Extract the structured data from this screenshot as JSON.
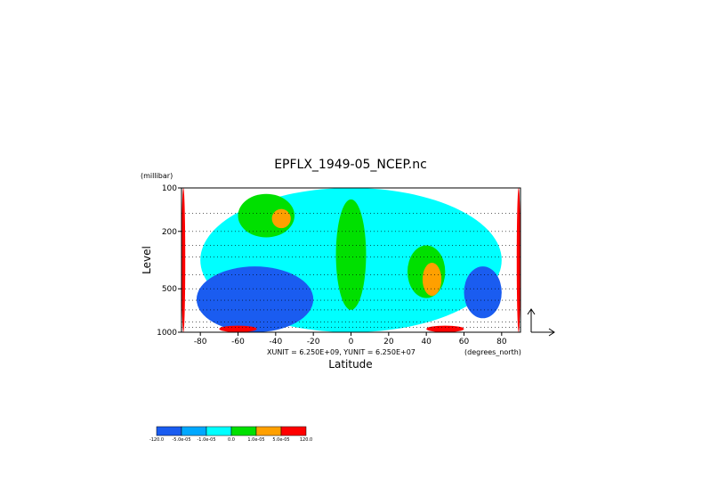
{
  "chart_data": {
    "type": "heatmap",
    "title": "EPFLX_1949-05_NCEP.nc",
    "xlabel": "Latitude",
    "ylabel": "Level",
    "y_unit": "(millibar)",
    "x_unit": "(degrees_north)",
    "vector_scale": "XUNIT = 6.250E+09, YUNIT = 6.250E+07",
    "x_ticks": [
      -80,
      -60,
      -40,
      -20,
      0,
      20,
      40,
      60,
      80
    ],
    "y_ticks": [
      100,
      200,
      500,
      1000
    ],
    "xlim": [
      -90,
      90
    ],
    "ylim": [
      1000,
      100
    ],
    "y_scale": "log",
    "grid": "dotted, pressure levels",
    "colorbar": {
      "boundaries": [
        "-120.0",
        "-5.0e-05",
        "-1.0e-05",
        "0.0",
        "1.0e-05",
        "5.0e-05",
        "120.0"
      ],
      "colors": [
        "#1a5cf0",
        "#00a8ff",
        "#00ffff",
        "#00e000",
        "#ffa000",
        "#ff0000"
      ]
    },
    "regions": [
      {
        "level": "cyan",
        "lat": [
          -80,
          80
        ],
        "p": [
          100,
          1000
        ]
      },
      {
        "level": "blue",
        "lat": [
          -82,
          -20
        ],
        "p": [
          350,
          1000
        ]
      },
      {
        "level": "blue",
        "lat": [
          60,
          80
        ],
        "p": [
          350,
          800
        ]
      },
      {
        "level": "green",
        "lat": [
          -60,
          -30
        ],
        "p": [
          110,
          220
        ]
      },
      {
        "level": "orange",
        "lat": [
          -42,
          -32
        ],
        "p": [
          140,
          190
        ]
      },
      {
        "level": "green",
        "lat": [
          -8,
          8
        ],
        "p": [
          120,
          700
        ]
      },
      {
        "level": "green",
        "lat": [
          30,
          50
        ],
        "p": [
          250,
          580
        ]
      },
      {
        "level": "orange",
        "lat": [
          38,
          48
        ],
        "p": [
          330,
          560
        ]
      },
      {
        "level": "red",
        "lat": [
          40,
          60
        ],
        "p": [
          900,
          1000
        ]
      },
      {
        "level": "red",
        "lat": [
          -70,
          -50
        ],
        "p": [
          900,
          1000
        ]
      },
      {
        "level": "red",
        "lat": [
          -90,
          -88
        ],
        "p": [
          100,
          1000
        ]
      },
      {
        "level": "red",
        "lat": [
          88,
          90
        ],
        "p": [
          100,
          1000
        ]
      }
    ]
  }
}
